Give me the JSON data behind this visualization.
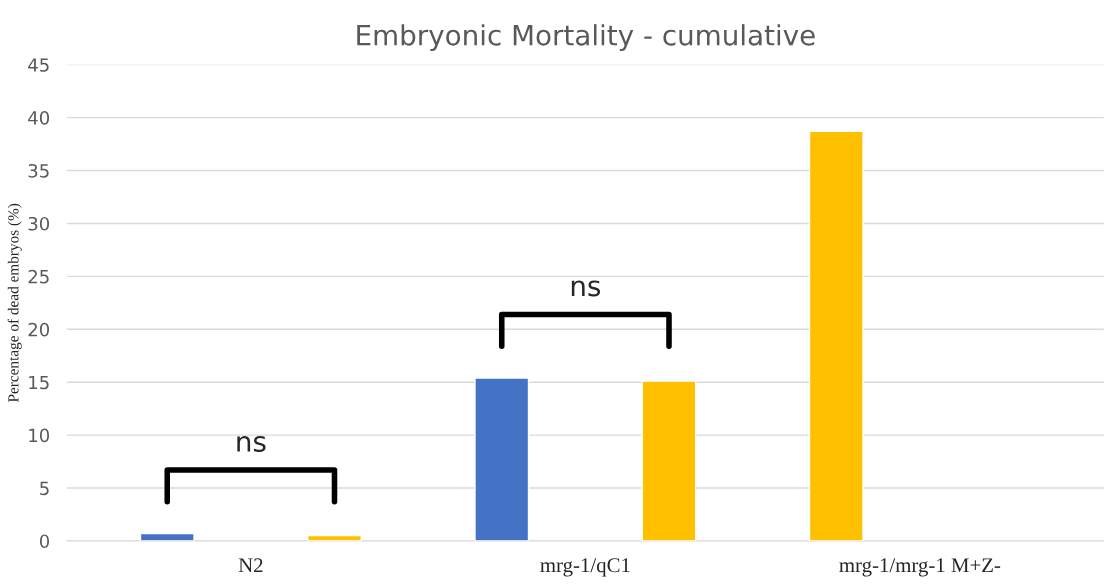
{
  "chart_data": {
    "type": "bar",
    "title": "Embryonic Mortality - cumulative",
    "ylabel": "Percentage of dead embryos (%)",
    "categories": [
      "N2",
      "mrg-1/qC1",
      "mrg-1/mrg-1 M+Z-"
    ],
    "series": [
      {
        "colors": [
          "#4472c4",
          "#4472c4",
          "#ffc000"
        ],
        "values": [
          0.7,
          15.4,
          38.7
        ]
      },
      {
        "colors": [
          "#ffc000",
          "#ffc000",
          "#ffc000"
        ],
        "values": [
          0.5,
          15.1,
          null
        ]
      }
    ],
    "ylim": [
      0,
      45
    ],
    "yticks": [
      0,
      5,
      10,
      15,
      20,
      25,
      30,
      35,
      40,
      45
    ],
    "grid": "y",
    "legend": false,
    "annotations": [
      "ns",
      "ns"
    ]
  }
}
